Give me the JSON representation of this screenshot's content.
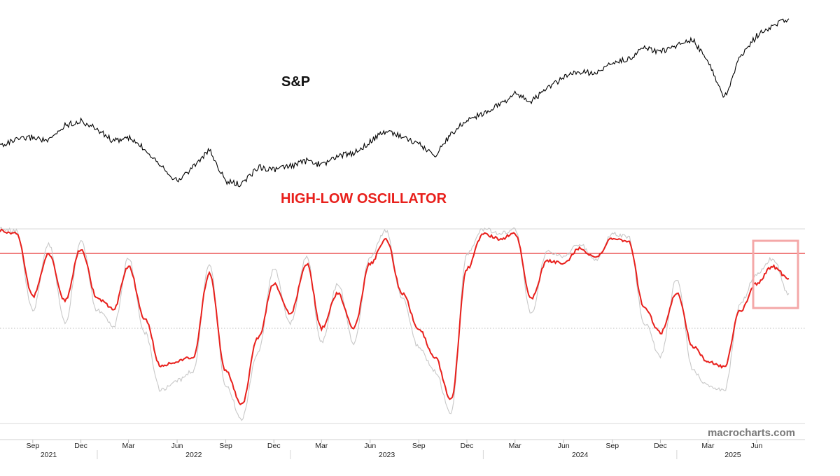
{
  "chart_data": [
    {
      "type": "line",
      "title": "S&P",
      "series": [
        {
          "x": [
            "2021-07-01",
            "2021-08-01",
            "2021-09-01",
            "2021-10-01",
            "2021-11-01",
            "2021-12-01",
            "2022-01-01",
            "2022-02-01",
            "2022-03-01",
            "2022-04-01",
            "2022-05-01",
            "2022-06-01",
            "2022-07-01",
            "2022-08-01",
            "2022-09-01",
            "2022-10-01",
            "2022-11-01",
            "2022-12-01",
            "2023-01-01",
            "2023-02-01",
            "2023-03-01",
            "2023-04-01",
            "2023-05-01",
            "2023-06-01",
            "2023-07-01",
            "2023-08-01",
            "2023-09-01",
            "2023-10-01",
            "2023-11-01",
            "2023-12-01",
            "2024-01-01",
            "2024-02-01",
            "2024-03-01",
            "2024-04-01",
            "2024-05-01",
            "2024-06-01",
            "2024-07-01",
            "2024-08-01",
            "2024-09-01",
            "2024-10-01",
            "2024-11-01",
            "2024-12-01",
            "2025-01-01",
            "2025-02-01",
            "2025-03-01",
            "2025-04-01",
            "2025-05-01",
            "2025-06-01",
            "2025-07-01",
            "2025-08-01"
          ],
          "y": [
            4310,
            4400,
            4450,
            4380,
            4650,
            4720,
            4580,
            4380,
            4440,
            4250,
            3990,
            3700,
            3950,
            4230,
            3700,
            3650,
            3950,
            3900,
            3960,
            4050,
            3980,
            4130,
            4180,
            4370,
            4560,
            4460,
            4330,
            4140,
            4500,
            4740,
            4850,
            5000,
            5180,
            5050,
            5270,
            5450,
            5550,
            5520,
            5700,
            5760,
            5950,
            5880,
            6000,
            6080,
            5720,
            5100,
            5800,
            6150,
            6320,
            6440
          ]
        }
      ]
    },
    {
      "type": "line",
      "title": "HIGH-LOW OSCILLATOR",
      "threshold_line_color": "#f08080",
      "midline": "dotted",
      "highlight_box_color": "#f4a8a8",
      "series": [
        {
          "color": "#e8201c",
          "x": [
            "2021-07-01",
            "2021-08-01",
            "2021-09-01",
            "2021-10-01",
            "2021-11-01",
            "2021-12-01",
            "2022-01-01",
            "2022-02-01",
            "2022-03-01",
            "2022-04-01",
            "2022-05-01",
            "2022-06-01",
            "2022-07-01",
            "2022-08-01",
            "2022-09-01",
            "2022-10-01",
            "2022-11-01",
            "2022-12-01",
            "2023-01-01",
            "2023-02-01",
            "2023-03-01",
            "2023-04-01",
            "2023-05-01",
            "2023-06-01",
            "2023-07-01",
            "2023-08-01",
            "2023-09-01",
            "2023-10-01",
            "2023-11-01",
            "2023-12-01",
            "2024-01-01",
            "2024-02-01",
            "2024-03-01",
            "2024-04-01",
            "2024-05-01",
            "2024-06-01",
            "2024-07-01",
            "2024-08-01",
            "2024-09-01",
            "2024-10-01",
            "2024-11-01",
            "2024-12-01",
            "2025-01-01",
            "2025-02-01",
            "2025-03-01",
            "2025-04-01",
            "2025-05-01",
            "2025-06-01",
            "2025-07-01",
            "2025-08-01"
          ],
          "y": [
            0.98,
            0.96,
            0.32,
            0.75,
            0.28,
            0.8,
            0.3,
            0.2,
            0.62,
            0.1,
            -0.4,
            -0.35,
            -0.3,
            0.55,
            -0.45,
            -0.8,
            -0.1,
            0.45,
            0.15,
            0.65,
            0.0,
            0.35,
            0.0,
            0.65,
            0.9,
            0.35,
            0.0,
            -0.3,
            -0.75,
            0.6,
            0.95,
            0.9,
            0.95,
            0.3,
            0.68,
            0.65,
            0.8,
            0.72,
            0.9,
            0.88,
            0.2,
            -0.05,
            0.35,
            -0.2,
            -0.35,
            -0.4,
            0.18,
            0.45,
            0.62,
            0.5
          ]
        },
        {
          "color": "#c8c8c8",
          "x": [
            "2021-07-01",
            "2021-08-01",
            "2021-09-01",
            "2021-10-01",
            "2021-11-01",
            "2021-12-01",
            "2022-01-01",
            "2022-02-01",
            "2022-03-01",
            "2022-04-01",
            "2022-05-01",
            "2022-06-01",
            "2022-07-01",
            "2022-08-01",
            "2022-09-01",
            "2022-10-01",
            "2022-11-01",
            "2022-12-01",
            "2023-01-01",
            "2023-02-01",
            "2023-03-01",
            "2023-04-01",
            "2023-05-01",
            "2023-06-01",
            "2023-07-01",
            "2023-08-01",
            "2023-09-01",
            "2023-10-01",
            "2023-11-01",
            "2023-12-01",
            "2024-01-01",
            "2024-02-01",
            "2024-03-01",
            "2024-04-01",
            "2024-05-01",
            "2024-06-01",
            "2024-07-01",
            "2024-08-01",
            "2024-09-01",
            "2024-10-01",
            "2024-11-01",
            "2024-12-01",
            "2025-01-01",
            "2025-02-01",
            "2025-03-01",
            "2025-04-01",
            "2025-05-01",
            "2025-06-01",
            "2025-07-01",
            "2025-08-01"
          ],
          "y": [
            1.0,
            0.98,
            0.18,
            0.85,
            0.05,
            0.88,
            0.18,
            0.02,
            0.7,
            -0.05,
            -0.65,
            -0.55,
            -0.45,
            0.65,
            -0.6,
            -0.95,
            -0.25,
            0.6,
            0.05,
            0.72,
            -0.15,
            0.45,
            -0.15,
            0.72,
            0.98,
            0.3,
            -0.2,
            -0.45,
            -0.88,
            0.75,
            1.0,
            0.95,
            1.0,
            0.15,
            0.78,
            0.72,
            0.85,
            0.68,
            0.95,
            0.92,
            0.05,
            -0.3,
            0.5,
            -0.45,
            -0.6,
            -0.65,
            0.25,
            0.55,
            0.7,
            0.35
          ]
        }
      ]
    }
  ],
  "x_axis": {
    "months": [
      {
        "label": "Sep",
        "date": "2021-09-01"
      },
      {
        "label": "Dec",
        "date": "2021-12-01"
      },
      {
        "label": "Mar",
        "date": "2022-03-01"
      },
      {
        "label": "Jun",
        "date": "2022-06-01"
      },
      {
        "label": "Sep",
        "date": "2022-09-01"
      },
      {
        "label": "Dec",
        "date": "2022-12-01"
      },
      {
        "label": "Mar",
        "date": "2023-03-01"
      },
      {
        "label": "Jun",
        "date": "2023-06-01"
      },
      {
        "label": "Sep",
        "date": "2023-09-01"
      },
      {
        "label": "Dec",
        "date": "2023-12-01"
      },
      {
        "label": "Mar",
        "date": "2024-03-01"
      },
      {
        "label": "Jun",
        "date": "2024-06-01"
      },
      {
        "label": "Sep",
        "date": "2024-09-01"
      },
      {
        "label": "Dec",
        "date": "2024-12-01"
      },
      {
        "label": "Mar",
        "date": "2025-03-01"
      },
      {
        "label": "Jun",
        "date": "2025-06-01"
      }
    ],
    "years": [
      {
        "label": "2021",
        "year": 2021
      },
      {
        "label": "2022",
        "year": 2022
      },
      {
        "label": "2023",
        "year": 2023
      },
      {
        "label": "2024",
        "year": 2024
      },
      {
        "label": "2025",
        "year": 2025
      }
    ]
  },
  "watermark": "macrocharts.com",
  "colors": {
    "sp_line": "#000000",
    "osc_title": "#e8201c"
  }
}
